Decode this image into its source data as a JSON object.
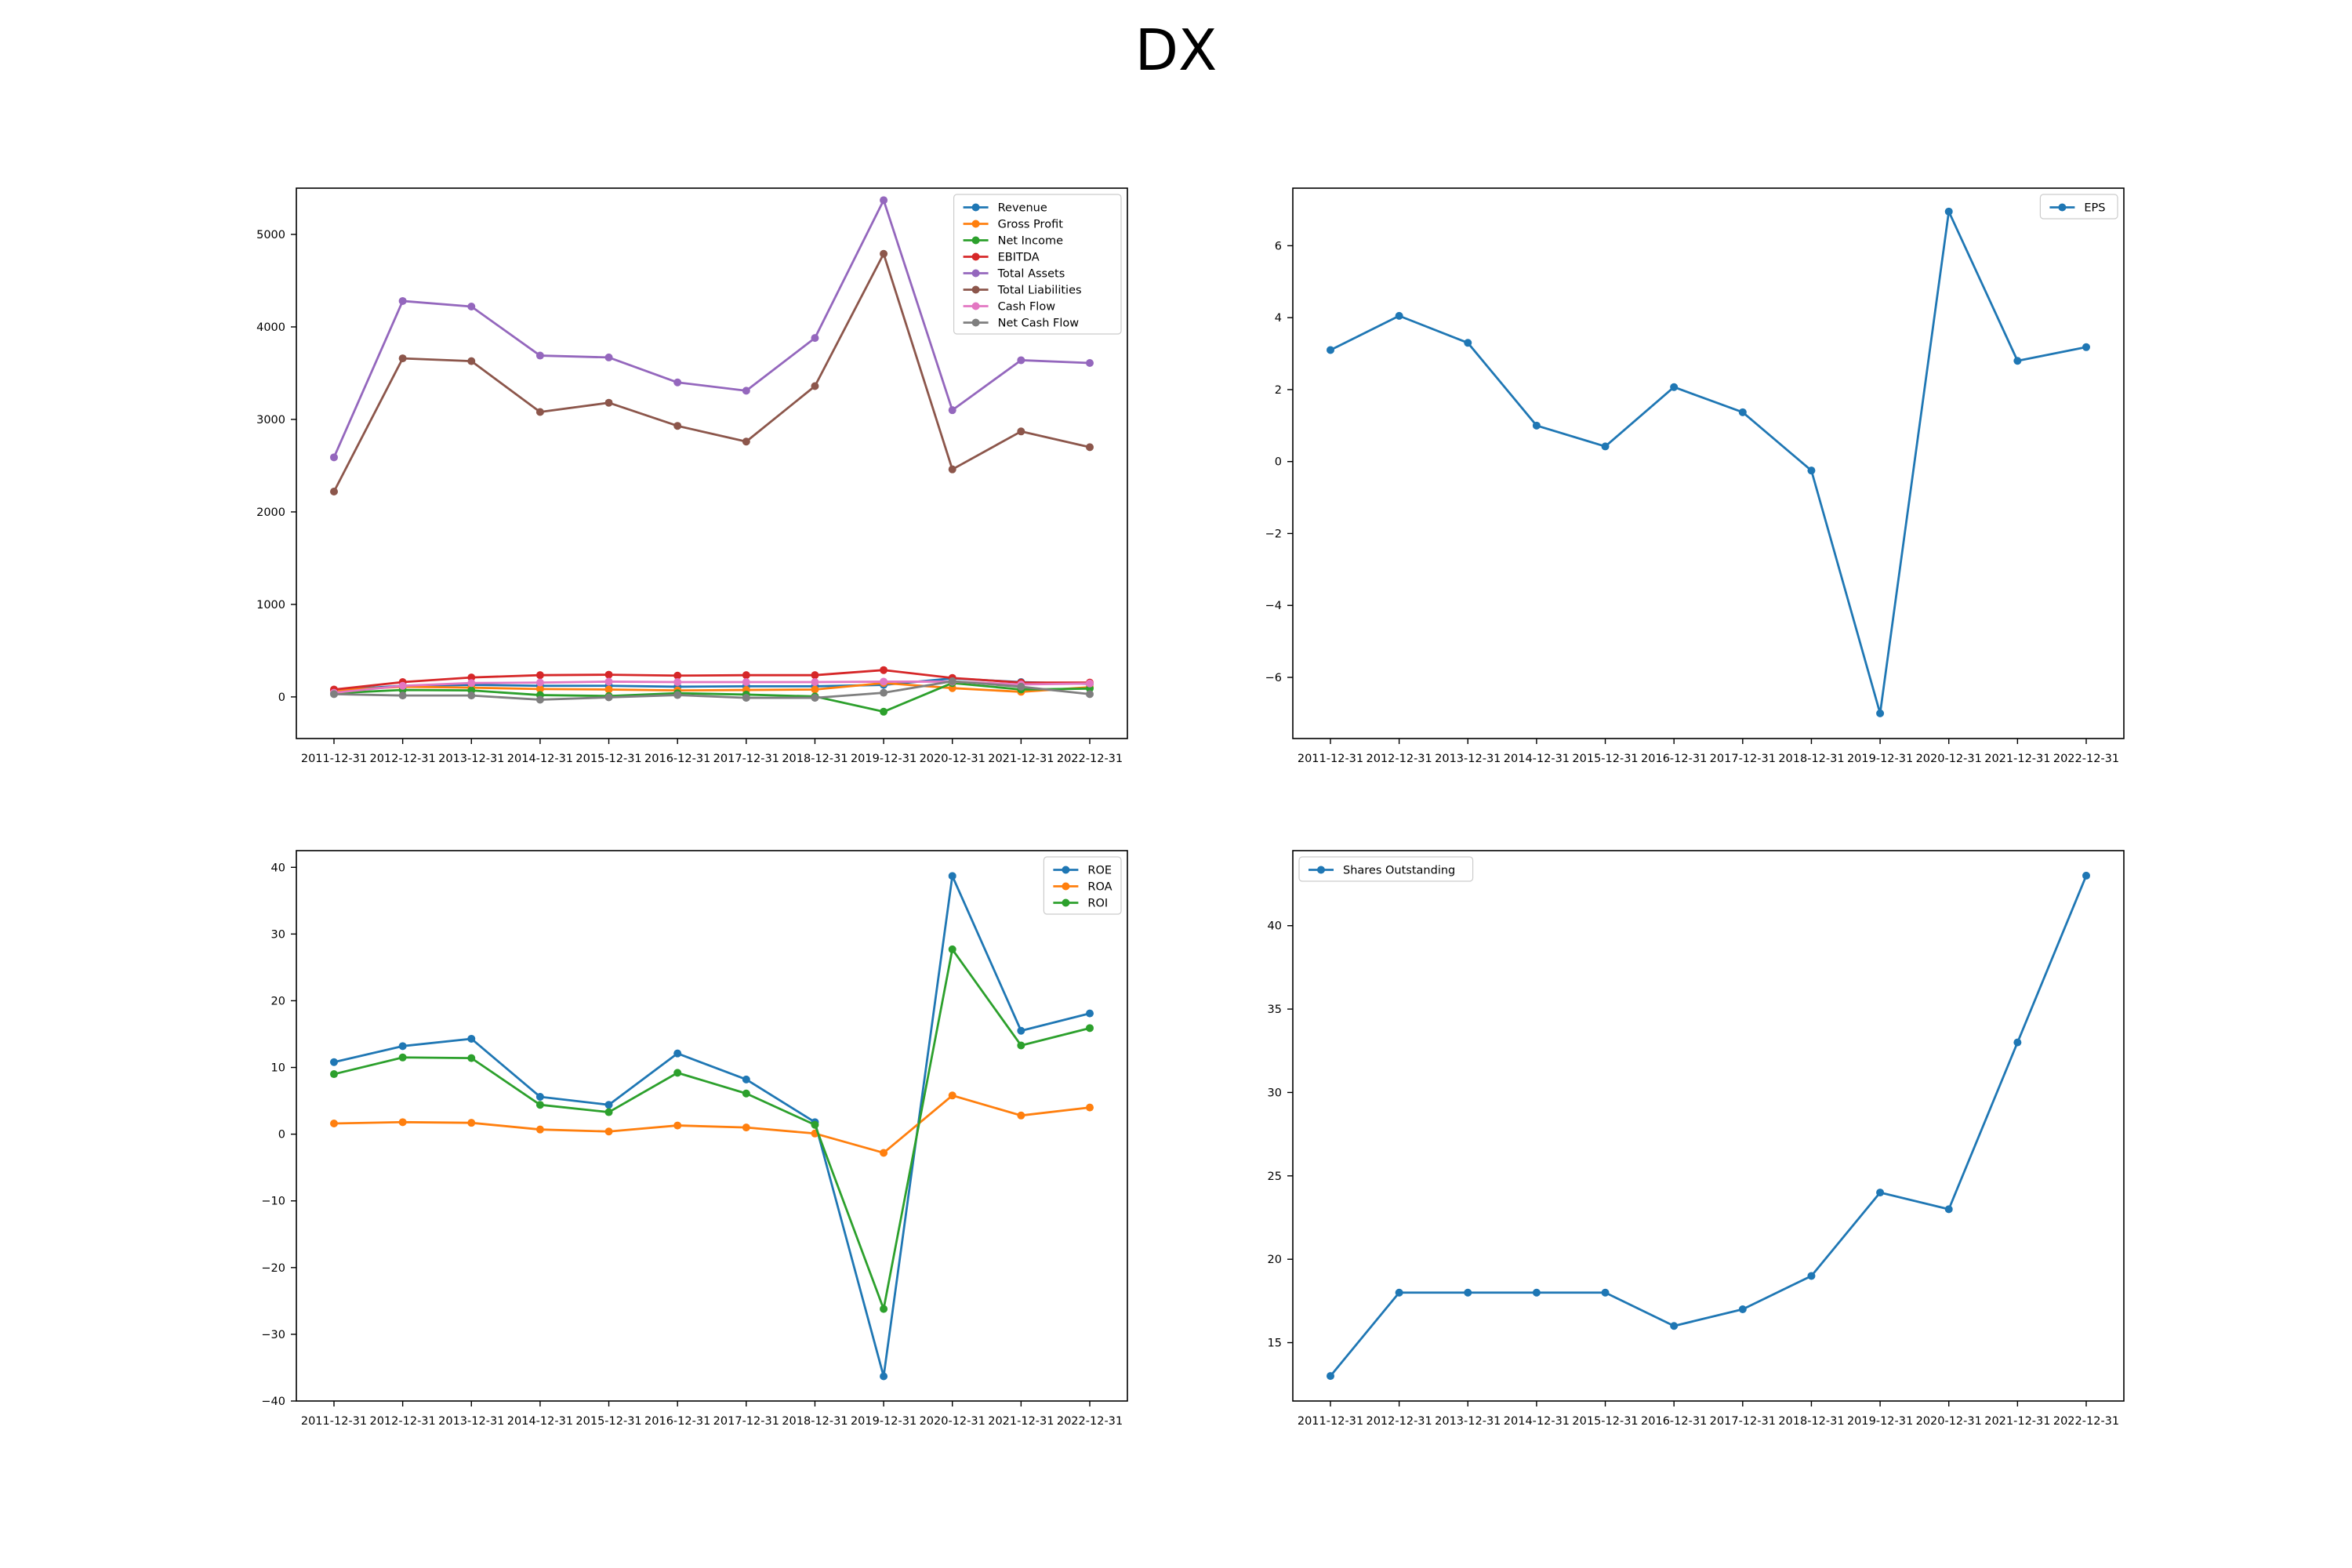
{
  "title": "DX",
  "chart_data": [
    {
      "type": "line",
      "x": [
        "2011-12-31",
        "2012-12-31",
        "2013-12-31",
        "2014-12-31",
        "2015-12-31",
        "2016-12-31",
        "2017-12-31",
        "2018-12-31",
        "2019-12-31",
        "2020-12-31",
        "2021-12-31",
        "2022-12-31"
      ],
      "ylim": [
        -450,
        5500
      ],
      "yticks": [
        0,
        1000,
        2000,
        3000,
        4000,
        5000
      ],
      "legend": "top-right",
      "grid": false,
      "series": [
        {
          "name": "Revenue",
          "color": "#1f77b4",
          "values": [
            75,
            120,
            130,
            120,
            120,
            110,
            115,
            115,
            130,
            200,
            160,
            140
          ]
        },
        {
          "name": "Gross Profit",
          "color": "#ff7f0e",
          "values": [
            70,
            110,
            100,
            85,
            80,
            70,
            75,
            80,
            150,
            95,
            55,
            105
          ]
        },
        {
          "name": "Net Income",
          "color": "#2ca02c",
          "values": [
            40,
            75,
            70,
            20,
            10,
            40,
            25,
            5,
            -160,
            150,
            80,
            90
          ]
        },
        {
          "name": "EBITDA",
          "color": "#d62728",
          "values": [
            80,
            160,
            210,
            235,
            240,
            230,
            235,
            235,
            290,
            205,
            155,
            155
          ]
        },
        {
          "name": "Total Assets",
          "color": "#9467bd",
          "values": [
            2590,
            4280,
            4220,
            3690,
            3670,
            3400,
            3310,
            3880,
            5370,
            3100,
            3640,
            3610
          ]
        },
        {
          "name": "Total Liabilities",
          "color": "#8c564b",
          "values": [
            2220,
            3660,
            3630,
            3080,
            3180,
            2930,
            2760,
            3360,
            4790,
            2460,
            2870,
            2700
          ]
        },
        {
          "name": "Cash Flow",
          "color": "#e377c2",
          "values": [
            45,
            120,
            150,
            155,
            165,
            160,
            160,
            160,
            165,
            165,
            135,
            145
          ]
        },
        {
          "name": "Net Cash Flow",
          "color": "#7f7f7f",
          "values": [
            30,
            15,
            15,
            -30,
            -5,
            20,
            -10,
            -10,
            45,
            170,
            110,
            30
          ]
        }
      ]
    },
    {
      "type": "line",
      "x": [
        "2011-12-31",
        "2012-12-31",
        "2013-12-31",
        "2014-12-31",
        "2015-12-31",
        "2016-12-31",
        "2017-12-31",
        "2018-12-31",
        "2019-12-31",
        "2020-12-31",
        "2021-12-31",
        "2022-12-31"
      ],
      "ylim": [
        -7.7,
        7.6
      ],
      "yticks": [
        -6,
        -4,
        -2,
        0,
        2,
        4,
        6
      ],
      "legend": "top-right",
      "grid": false,
      "series": [
        {
          "name": "EPS",
          "color": "#1f77b4",
          "values": [
            3.1,
            4.05,
            3.3,
            1.0,
            0.42,
            2.07,
            1.37,
            -0.25,
            -7.0,
            6.95,
            2.8,
            3.18
          ]
        }
      ]
    },
    {
      "type": "line",
      "x": [
        "2011-12-31",
        "2012-12-31",
        "2013-12-31",
        "2014-12-31",
        "2015-12-31",
        "2016-12-31",
        "2017-12-31",
        "2018-12-31",
        "2019-12-31",
        "2020-12-31",
        "2021-12-31",
        "2022-12-31"
      ],
      "ylim": [
        -40,
        42.5
      ],
      "yticks": [
        -40,
        -30,
        -20,
        -10,
        0,
        10,
        20,
        30,
        40
      ],
      "legend": "top-right",
      "grid": false,
      "series": [
        {
          "name": "ROE",
          "color": "#1f77b4",
          "values": [
            10.8,
            13.2,
            14.3,
            5.6,
            4.4,
            12.1,
            8.2,
            1.8,
            -36.3,
            38.7,
            15.5,
            18.1
          ]
        },
        {
          "name": "ROA",
          "color": "#ff7f0e",
          "values": [
            1.6,
            1.8,
            1.7,
            0.7,
            0.4,
            1.3,
            1.0,
            0.1,
            -2.8,
            5.8,
            2.8,
            4.0
          ]
        },
        {
          "name": "ROI",
          "color": "#2ca02c",
          "values": [
            9.0,
            11.5,
            11.4,
            4.4,
            3.3,
            9.2,
            6.1,
            1.4,
            -26.2,
            27.7,
            13.3,
            15.9
          ]
        }
      ]
    },
    {
      "type": "line",
      "x": [
        "2011-12-31",
        "2012-12-31",
        "2013-12-31",
        "2014-12-31",
        "2015-12-31",
        "2016-12-31",
        "2017-12-31",
        "2018-12-31",
        "2019-12-31",
        "2020-12-31",
        "2021-12-31",
        "2022-12-31"
      ],
      "ylim": [
        11.5,
        44.5
      ],
      "yticks": [
        15,
        20,
        25,
        30,
        35,
        40
      ],
      "legend": "top-left",
      "grid": false,
      "series": [
        {
          "name": "Shares Outstanding",
          "color": "#1f77b4",
          "values": [
            13,
            18,
            18,
            18,
            18,
            16,
            17,
            19,
            24,
            23,
            33,
            43
          ]
        }
      ]
    }
  ]
}
